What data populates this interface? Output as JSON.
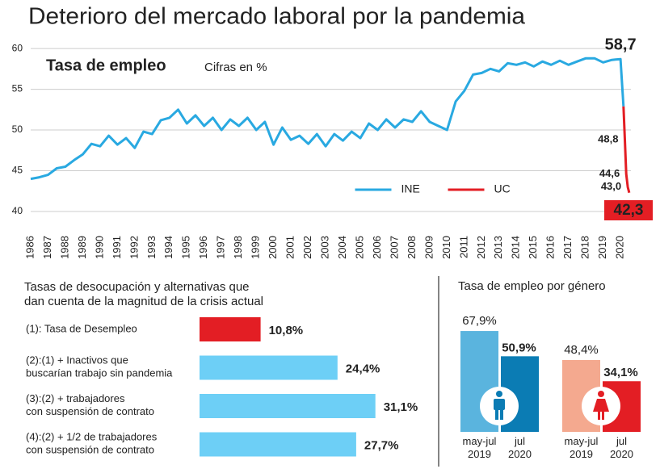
{
  "title": "Deterioro del mercado laboral por la pandemia",
  "chart_data": [
    {
      "type": "line",
      "title": "Tasa de empleo",
      "ylabel": "Cifras en %",
      "xlim": [
        1986,
        2020.6
      ],
      "ylim": [
        40,
        61
      ],
      "yticks": [
        40,
        45,
        50,
        55,
        60
      ],
      "xticks": [
        1986,
        1987,
        1988,
        1989,
        1990,
        1991,
        1992,
        1993,
        1994,
        1995,
        1996,
        1997,
        1998,
        1999,
        2000,
        2001,
        2002,
        2003,
        2004,
        2005,
        2006,
        2007,
        2008,
        2009,
        2010,
        2011,
        2012,
        2013,
        2014,
        2015,
        2016,
        2017,
        2018,
        2019,
        2020
      ],
      "grid": true,
      "legend": "bottom-center",
      "series": [
        {
          "name": "INE",
          "color": "#29a9e1",
          "x": [
            1986,
            1986.5,
            1987,
            1987.5,
            1988,
            1988.5,
            1989,
            1989.5,
            1990,
            1990.5,
            1991,
            1991.5,
            1992,
            1992.5,
            1993,
            1993.5,
            1994,
            1994.5,
            1995,
            1995.5,
            1996,
            1996.5,
            1997,
            1997.5,
            1998,
            1998.5,
            1999,
            1999.5,
            2000,
            2000.5,
            2001,
            2001.5,
            2002,
            2002.5,
            2003,
            2003.5,
            2004,
            2004.5,
            2005,
            2005.5,
            2006,
            2006.5,
            2007,
            2007.5,
            2008,
            2008.5,
            2009,
            2009.5,
            2010,
            2010.5,
            2011,
            2011.5,
            2012,
            2012.5,
            2013,
            2013.5,
            2014,
            2014.5,
            2015,
            2015.5,
            2016,
            2016.5,
            2017,
            2017.5,
            2018,
            2018.5,
            2019,
            2019.5,
            2020,
            2020.17
          ],
          "values": [
            44.0,
            44.2,
            44.5,
            45.3,
            45.5,
            46.3,
            47.0,
            48.3,
            48.0,
            49.3,
            48.2,
            49.0,
            47.8,
            49.8,
            49.5,
            51.2,
            51.5,
            52.5,
            50.8,
            51.8,
            50.5,
            51.5,
            50.0,
            51.3,
            50.5,
            51.5,
            50.0,
            51.0,
            48.2,
            50.3,
            48.8,
            49.3,
            48.3,
            49.5,
            48.0,
            49.5,
            48.7,
            49.8,
            49.0,
            50.8,
            50.0,
            51.3,
            50.3,
            51.3,
            51.0,
            52.3,
            51.0,
            50.5,
            50.0,
            53.5,
            54.8,
            56.8,
            57.0,
            57.5,
            57.2,
            58.2,
            58.0,
            58.3,
            57.8,
            58.4,
            58.0,
            58.5,
            58.0,
            58.4,
            58.8,
            58.8,
            58.3,
            58.6,
            58.7,
            52.9
          ]
        },
        {
          "name": "UC",
          "color": "#e31e24",
          "x": [
            2020.17,
            2020.25,
            2020.33,
            2020.42,
            2020.5
          ],
          "values": [
            52.9,
            48.8,
            44.6,
            43.0,
            42.3
          ],
          "value_labels": [
            null,
            "48,8",
            "44,6",
            "43,0",
            "42,3"
          ]
        }
      ],
      "annotations": [
        {
          "x": 2020,
          "y": 58.7,
          "label": "58,7"
        }
      ]
    },
    {
      "type": "barh",
      "title": "Tasas de desocupación y alternativas que\ndan cuenta de la magnitud de la crisis actual",
      "categories": [
        "(1): Tasa de Desempleo",
        "(2):(1) + Inactivos que\nbuscarían trabajo sin pandemia",
        "(3):(2) + trabajadores\ncon suspensión de contrato",
        "(4):(2) + 1/2 de trabajadores\ncon suspensión de contrato"
      ],
      "values": [
        10.8,
        24.4,
        31.1,
        27.7
      ],
      "value_labels": [
        "10,8%",
        "24,4%",
        "31,1%",
        "27,7%"
      ],
      "colors": [
        "#e31e24",
        "#6dcff6",
        "#6dcff6",
        "#6dcff6"
      ]
    },
    {
      "type": "column",
      "title": "Tasa de empleo por género",
      "categories": [
        "may-jul\n2019",
        "jul\n2020"
      ],
      "groups": [
        {
          "values": [
            67.9,
            50.9
          ],
          "value_labels": [
            "67,9%",
            "50,9%"
          ],
          "colors": [
            "#5ab4de",
            "#0b7cb4"
          ]
        },
        {
          "values": [
            48.4,
            34.1
          ],
          "value_labels": [
            "48,4%",
            "34,1%"
          ],
          "colors": [
            "#f4a98f",
            "#e31e24"
          ]
        }
      ]
    }
  ]
}
